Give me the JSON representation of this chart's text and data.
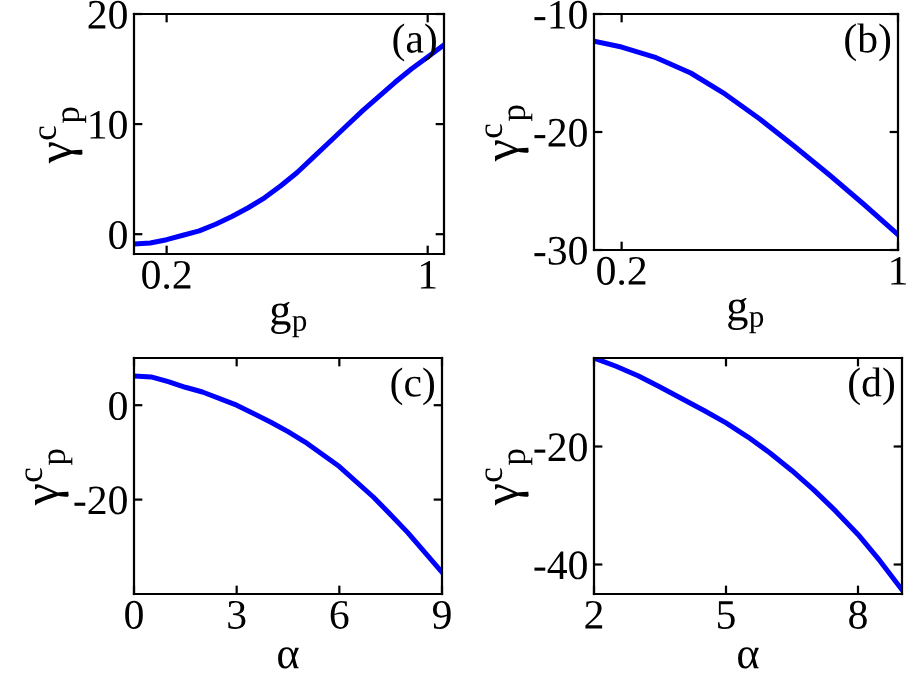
{
  "chart_data": [
    {
      "type": "line",
      "xlabel": "g$_{p}$",
      "ylabel": "γ$^{c}$$_{p}$",
      "annotations": [
        "(a)"
      ],
      "xlim": [
        0.1,
        1.05
      ],
      "ylim": [
        -1.8,
        20
      ],
      "xticks": [
        0.2,
        1
      ],
      "yticks": [
        0,
        10,
        20
      ],
      "grid": false,
      "series": [
        {
          "color": "#0000ff",
          "x": [
            0.1,
            0.15,
            0.2,
            0.25,
            0.3,
            0.35,
            0.4,
            0.45,
            0.5,
            0.55,
            0.6,
            0.65,
            0.7,
            0.75,
            0.8,
            0.85,
            0.9,
            0.95,
            1.0,
            1.05
          ],
          "values": [
            -0.9,
            -0.8,
            -0.5,
            -0.1,
            0.3,
            0.9,
            1.6,
            2.4,
            3.3,
            4.4,
            5.6,
            7.0,
            8.4,
            9.8,
            11.2,
            12.5,
            13.8,
            15.0,
            16.1,
            17.2
          ]
        }
      ]
    },
    {
      "type": "line",
      "xlabel": "g$_{p}$",
      "ylabel": "γ$^{c}$$_{p}$",
      "annotations": [
        "(b)"
      ],
      "xlim": [
        0.12,
        1
      ],
      "ylim": [
        -30,
        -10
      ],
      "xticks": [
        0.2,
        1
      ],
      "yticks": [
        -30,
        -20,
        -10
      ],
      "grid": false,
      "series": [
        {
          "color": "#0000ff",
          "x": [
            0.12,
            0.2,
            0.3,
            0.4,
            0.5,
            0.6,
            0.7,
            0.8,
            0.9,
            1.0
          ],
          "values": [
            -12.3,
            -12.8,
            -13.7,
            -15.0,
            -16.8,
            -18.9,
            -21.2,
            -23.6,
            -26.1,
            -28.7
          ]
        }
      ]
    },
    {
      "type": "line",
      "xlabel": "α",
      "ylabel": "γ$^{c}$$_{p}$",
      "annotations": [
        "(c)"
      ],
      "xlim": [
        0,
        9
      ],
      "ylim": [
        -40,
        10
      ],
      "xticks": [
        0,
        3,
        6,
        9
      ],
      "yticks": [
        -20,
        0
      ],
      "grid": false,
      "series": [
        {
          "color": "#0000ff",
          "x": [
            0,
            0.5,
            1,
            1.5,
            2,
            3,
            4,
            4.5,
            5,
            6,
            7,
            7.5,
            8,
            9
          ],
          "values": [
            6.2,
            6.0,
            5.0,
            3.8,
            2.8,
            0,
            -3.6,
            -5.6,
            -7.8,
            -13,
            -19.5,
            -23.2,
            -27,
            -35.4
          ]
        }
      ]
    },
    {
      "type": "line",
      "xlabel": "α",
      "ylabel": "γ$^{c}$$_{p}$",
      "annotations": [
        "(d)"
      ],
      "xlim": [
        2,
        9
      ],
      "ylim": [
        -45,
        -5
      ],
      "xticks": [
        2,
        5,
        8
      ],
      "yticks": [
        -40,
        -20
      ],
      "grid": false,
      "series": [
        {
          "color": "#0000ff",
          "x": [
            2,
            2.5,
            3,
            3.5,
            4,
            4.5,
            5,
            5.5,
            6,
            6.5,
            7,
            7.5,
            8,
            8.5,
            9
          ],
          "values": [
            -5,
            -6.4,
            -8,
            -9.9,
            -11.9,
            -13.9,
            -16,
            -18.4,
            -21.1,
            -24.1,
            -27.4,
            -31,
            -34.9,
            -39.4,
            -44.3
          ]
        }
      ]
    }
  ]
}
